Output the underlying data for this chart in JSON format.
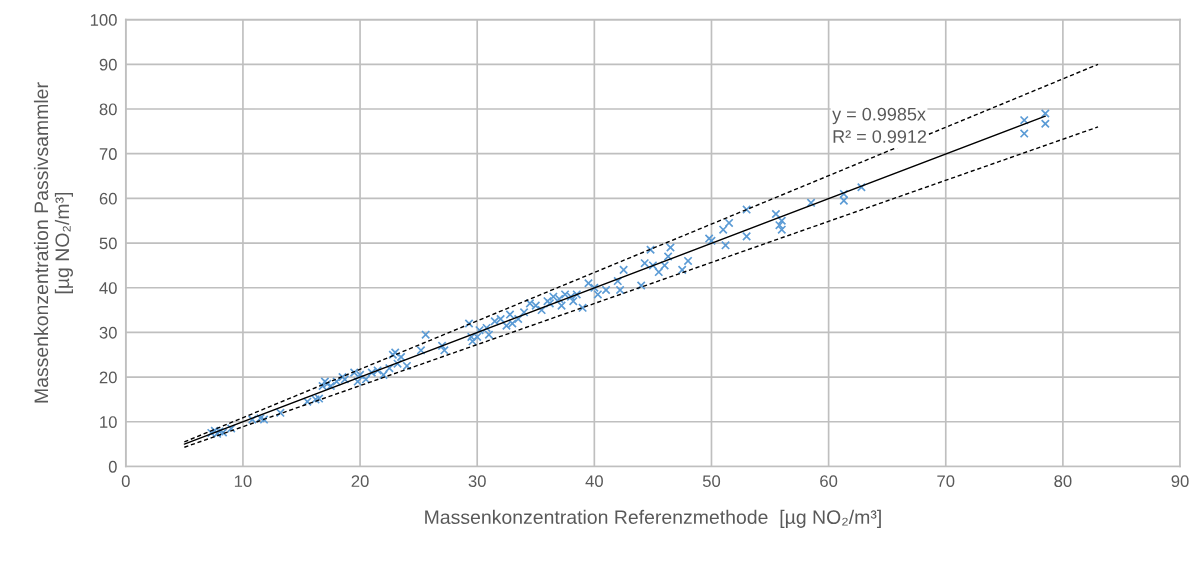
{
  "chart_data": {
    "type": "scatter",
    "xlabel": "Massenkonzentration Referenzmethode  [µg NO₂/m³]",
    "ylabel": "Massenkonzentration Passivsammler\n[µg NO₂/m³]",
    "xlim": [
      0,
      90
    ],
    "xticks": [
      0,
      10,
      20,
      30,
      40,
      50,
      60,
      70,
      80,
      90
    ],
    "ylim": [
      0,
      100
    ],
    "yticks": [
      0,
      10,
      20,
      30,
      40,
      50,
      60,
      70,
      80,
      90,
      100
    ],
    "grid": true,
    "legend": false,
    "annotations": [
      "y = 0.9985x",
      "R² = 0.9912"
    ],
    "series": [
      {
        "color": "#5b9bd5",
        "marker": "cross",
        "x": [
          7.3,
          7.6,
          7.8,
          8,
          8.3,
          9,
          10.8,
          11.5,
          11.8,
          13.2,
          15.5,
          16.2,
          16.5,
          16.8,
          17,
          17.2,
          17.5,
          18,
          18.5,
          18.7,
          19.5,
          19.8,
          20,
          20.5,
          21,
          21.5,
          22,
          22.5,
          22.8,
          23,
          23.2,
          23.5,
          24,
          25.2,
          25.6,
          27,
          27.2,
          29.3,
          29.5,
          29.6,
          30,
          30.2,
          30.8,
          31,
          31.5,
          32,
          32.5,
          32.8,
          33,
          33.5,
          34,
          34.5,
          35,
          35.5,
          36,
          36.2,
          36.5,
          37,
          37.2,
          37.5,
          38,
          38.2,
          38.5,
          39,
          39.5,
          40,
          40.3,
          41,
          42,
          42.2,
          42.5,
          44,
          44.3,
          44.8,
          45,
          45.5,
          46,
          46.3,
          46.5,
          47.5,
          48,
          49.8,
          50,
          51,
          51.2,
          51.5,
          53,
          53,
          55.5,
          55.8,
          56,
          56,
          58.5,
          61.3,
          61.3,
          62.8,
          76.7,
          76.7,
          78.5,
          78.5
        ],
        "values": [
          7.5,
          8,
          7.3,
          7.8,
          7.6,
          8.5,
          10.5,
          10.8,
          10.5,
          12,
          14.5,
          15,
          15.2,
          18,
          19,
          18.5,
          18,
          19,
          20,
          19.5,
          21,
          19,
          20.5,
          19.5,
          21,
          21.5,
          20.5,
          22,
          25,
          25.5,
          23,
          24.5,
          22.5,
          26,
          29.5,
          27,
          26,
          32,
          29,
          28,
          29,
          30.5,
          31,
          29.5,
          32.5,
          33,
          31.5,
          34,
          32,
          33,
          34.5,
          36.5,
          36,
          35,
          37,
          36.5,
          38,
          37.5,
          36,
          38.5,
          38,
          37,
          38.5,
          35.5,
          41,
          40,
          38.5,
          39.5,
          41.5,
          39.5,
          44,
          40.5,
          45.5,
          48.5,
          45,
          43.5,
          45,
          47,
          49,
          44,
          46,
          51,
          50.5,
          53,
          49.5,
          54.5,
          57.5,
          51.5,
          56.5,
          54,
          55,
          53,
          59,
          61,
          59.5,
          62.5,
          77.5,
          74.5,
          79,
          76.7
        ]
      },
      {
        "type": "line",
        "color": "#000000",
        "marker": "none",
        "line_style": "solid",
        "x": [
          5,
          78.5
        ],
        "values": [
          5,
          78.4
        ]
      },
      {
        "type": "line",
        "color": "#000000",
        "marker": "none",
        "line_style": "dashed",
        "x": [
          5,
          83
        ],
        "values": [
          5.5,
          90
        ]
      },
      {
        "type": "line",
        "color": "#000000",
        "marker": "none",
        "line_style": "dashed",
        "x": [
          5,
          83
        ],
        "values": [
          4.3,
          76
        ]
      }
    ]
  }
}
